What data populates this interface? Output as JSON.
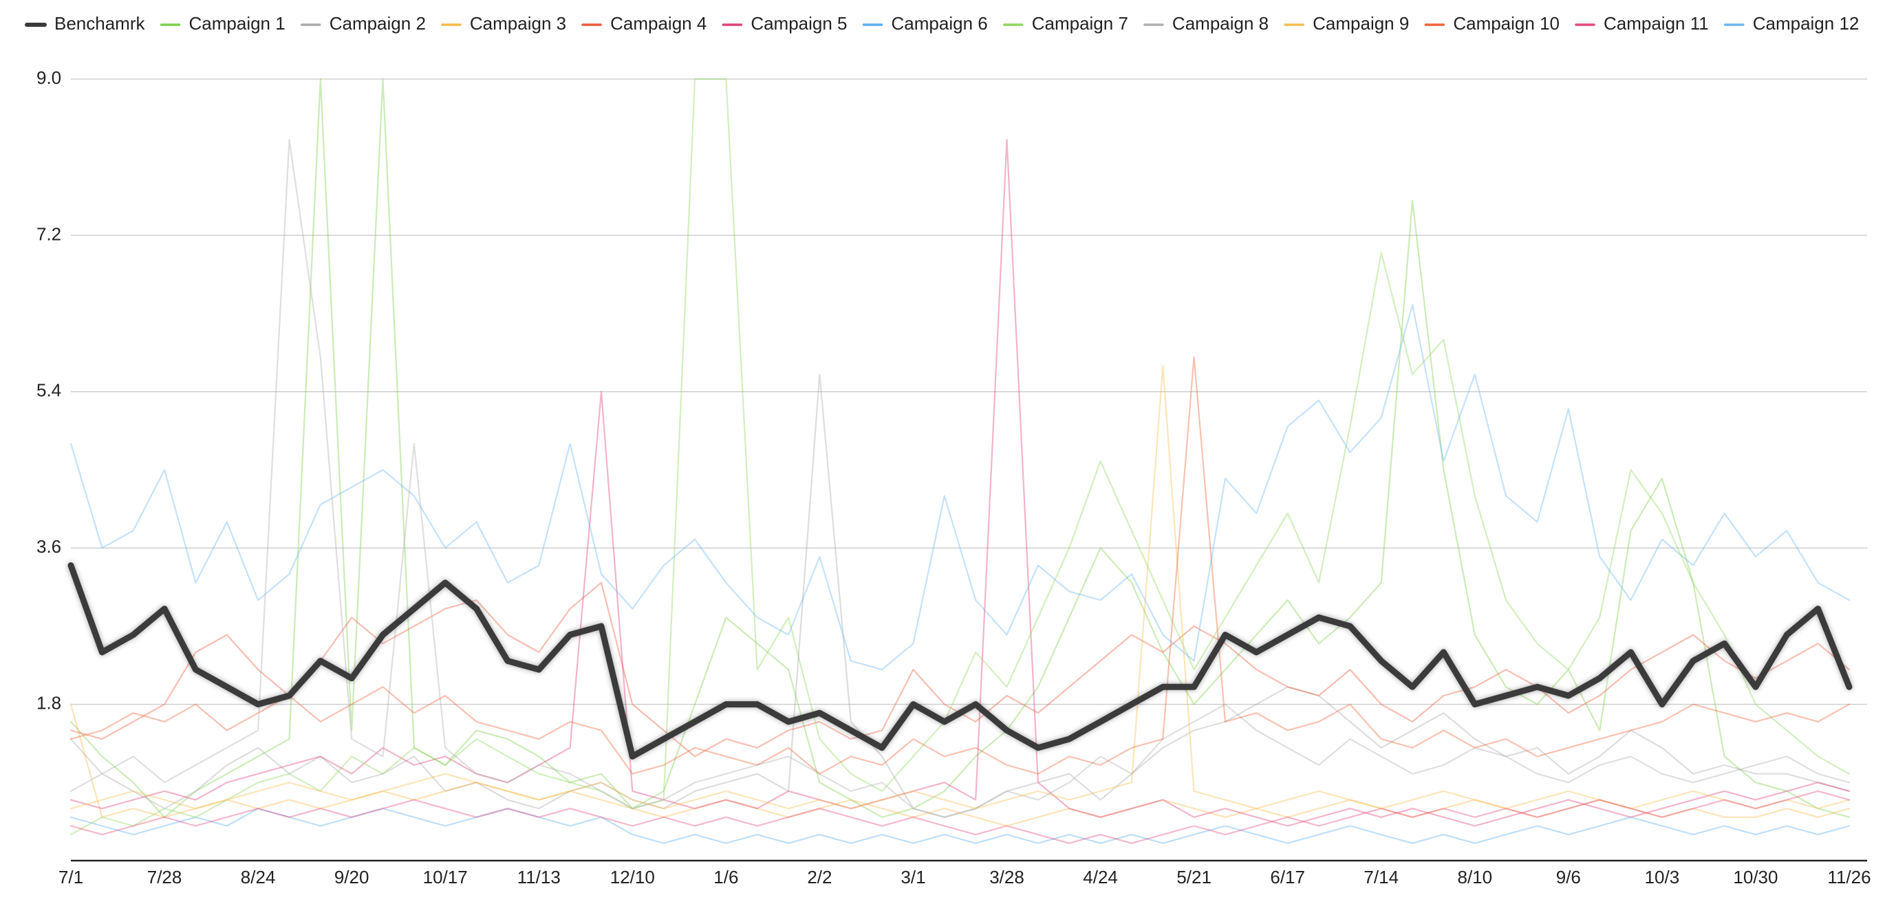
{
  "chart_data": {
    "type": "line",
    "legend": "top",
    "grid": true,
    "ylim": [
      0,
      9
    ],
    "yticks": [
      1.8,
      3.6,
      5.4,
      7.2,
      {
        "value": 9,
        "label": "9.0"
      }
    ],
    "categories": [
      "7/1",
      null,
      null,
      "7/28",
      null,
      null,
      "8/24",
      null,
      null,
      "9/20",
      null,
      null,
      "10/17",
      null,
      null,
      "11/13",
      null,
      null,
      "12/10",
      null,
      null,
      "1/6",
      null,
      null,
      "2/2",
      null,
      null,
      "3/1",
      null,
      null,
      "3/28",
      null,
      null,
      "4/24",
      null,
      null,
      "5/21",
      null,
      null,
      "6/17",
      null,
      null,
      "7/14",
      null,
      null,
      "8/10",
      null,
      null,
      "9/6",
      null,
      null,
      "10/3",
      null,
      null,
      "10/30",
      null,
      null,
      "11/26"
    ],
    "series": [
      {
        "name": "Benchamrk",
        "color": "#3a3a3a",
        "values": [
          3.4,
          2.4,
          2.6,
          2.9,
          2.2,
          2.0,
          1.8,
          1.9,
          2.3,
          2.1,
          2.6,
          2.9,
          3.2,
          2.9,
          2.3,
          2.2,
          2.6,
          2.7,
          1.2,
          1.4,
          1.6,
          1.8,
          1.8,
          1.6,
          1.7,
          1.5,
          1.3,
          1.8,
          1.6,
          1.8,
          1.5,
          1.3,
          1.4,
          1.6,
          1.8,
          2.0,
          2.0,
          2.6,
          2.4,
          2.6,
          2.8,
          2.7,
          2.3,
          2.0,
          2.4,
          1.8,
          1.9,
          2.0,
          1.9,
          2.1,
          2.4,
          1.8,
          2.3,
          2.5,
          2.0,
          2.6,
          2.9,
          2.0
        ]
      },
      {
        "name": "Campaign 1",
        "color": "#7ed04b",
        "values": [
          1.6,
          1.2,
          0.9,
          0.5,
          0.8,
          1.0,
          1.2,
          1.4,
          9.0,
          1.5,
          9.0,
          1.3,
          1.1,
          1.5,
          1.4,
          1.2,
          0.9,
          1.0,
          0.6,
          0.8,
          1.8,
          2.8,
          2.5,
          2.2,
          0.9,
          0.7,
          0.5,
          0.6,
          0.8,
          1.2,
          1.5,
          2.0,
          2.8,
          3.6,
          3.2,
          2.4,
          1.8,
          2.2,
          2.6,
          3.0,
          2.5,
          2.8,
          3.2,
          7.6,
          4.5,
          2.6,
          2.0,
          1.8,
          2.2,
          1.5,
          3.8,
          4.4,
          3.2,
          1.2,
          0.9,
          0.8,
          0.6,
          0.5
        ]
      },
      {
        "name": "Campaign 2",
        "color": "#a9a9a9",
        "values": [
          1.4,
          1.0,
          0.8,
          0.6,
          0.8,
          1.1,
          1.3,
          1.0,
          1.2,
          0.9,
          1.0,
          1.2,
          0.8,
          0.9,
          0.7,
          0.6,
          0.8,
          0.9,
          0.7,
          0.6,
          0.8,
          0.9,
          1.0,
          0.8,
          5.6,
          1.6,
          1.2,
          0.6,
          0.5,
          0.6,
          0.8,
          0.9,
          1.0,
          0.7,
          1.0,
          1.3,
          1.5,
          1.6,
          1.8,
          2.0,
          1.9,
          1.6,
          1.3,
          1.5,
          1.7,
          1.4,
          1.2,
          1.3,
          1.0,
          1.2,
          1.5,
          1.3,
          1.0,
          1.1,
          1.0,
          1.0,
          0.9,
          0.8
        ]
      },
      {
        "name": "Campaign 3",
        "color": "#f7b94a",
        "values": [
          1.8,
          0.5,
          0.6,
          0.5,
          0.6,
          0.7,
          0.6,
          0.7,
          0.6,
          0.7,
          0.8,
          0.7,
          0.8,
          0.9,
          0.8,
          0.7,
          0.8,
          0.7,
          0.6,
          0.5,
          0.6,
          0.7,
          0.6,
          0.5,
          0.6,
          0.7,
          0.6,
          0.5,
          0.6,
          0.5,
          0.4,
          0.5,
          0.6,
          0.5,
          0.6,
          0.7,
          0.6,
          0.5,
          0.6,
          0.5,
          0.6,
          0.7,
          0.6,
          0.5,
          0.6,
          0.7,
          0.6,
          0.5,
          0.6,
          0.7,
          0.6,
          0.5,
          0.6,
          0.5,
          0.5,
          0.6,
          0.5,
          0.6
        ]
      },
      {
        "name": "Campaign 4",
        "color": "#ee5a3c",
        "values": [
          1.5,
          1.4,
          1.6,
          1.8,
          2.4,
          2.6,
          2.2,
          1.9,
          2.3,
          2.8,
          2.5,
          2.7,
          2.9,
          3.0,
          2.6,
          2.4,
          2.9,
          3.2,
          1.8,
          1.5,
          1.2,
          1.4,
          1.3,
          1.5,
          1.6,
          1.4,
          1.5,
          2.2,
          1.8,
          1.6,
          1.9,
          1.7,
          2.0,
          2.3,
          2.6,
          2.4,
          2.7,
          2.5,
          2.2,
          2.0,
          1.9,
          2.2,
          1.8,
          1.6,
          1.9,
          2.0,
          2.2,
          2.0,
          1.7,
          1.9,
          2.2,
          2.4,
          2.6,
          2.3,
          2.1,
          2.3,
          2.5,
          2.2
        ]
      },
      {
        "name": "Campaign 5",
        "color": "#e0407a",
        "values": [
          0.7,
          0.6,
          0.7,
          0.8,
          0.7,
          0.9,
          1.0,
          1.1,
          1.2,
          1.0,
          1.3,
          1.1,
          1.2,
          1.0,
          0.9,
          1.1,
          1.3,
          5.4,
          0.8,
          0.7,
          0.6,
          0.7,
          0.6,
          0.8,
          0.7,
          0.6,
          0.7,
          0.8,
          0.9,
          0.7,
          8.3,
          0.9,
          0.6,
          0.5,
          0.6,
          0.7,
          0.5,
          0.6,
          0.5,
          0.4,
          0.5,
          0.6,
          0.5,
          0.6,
          0.5,
          0.4,
          0.5,
          0.6,
          0.7,
          0.6,
          0.5,
          0.6,
          0.7,
          0.8,
          0.7,
          0.8,
          0.9,
          0.8
        ]
      },
      {
        "name": "Campaign 6",
        "color": "#5aaef0",
        "values": [
          0.5,
          0.4,
          0.3,
          0.4,
          0.5,
          0.4,
          0.6,
          0.5,
          0.4,
          0.5,
          0.6,
          0.5,
          0.4,
          0.5,
          0.6,
          0.5,
          0.4,
          0.5,
          0.3,
          0.2,
          0.3,
          0.2,
          0.3,
          0.2,
          0.3,
          0.2,
          0.3,
          0.2,
          0.3,
          0.2,
          0.3,
          0.2,
          0.3,
          0.2,
          0.3,
          0.2,
          0.3,
          0.4,
          0.3,
          0.2,
          0.3,
          0.4,
          0.3,
          0.2,
          0.3,
          0.2,
          0.3,
          0.4,
          0.3,
          0.4,
          0.5,
          0.4,
          0.3,
          0.4,
          0.3,
          0.4,
          0.3,
          0.4
        ]
      },
      {
        "name": "Campaign 7",
        "color": "#8fd65c",
        "values": [
          0.3,
          0.5,
          0.4,
          0.6,
          0.5,
          0.7,
          0.9,
          1.0,
          0.8,
          1.2,
          1.0,
          1.3,
          1.1,
          1.4,
          1.2,
          1.0,
          0.9,
          0.8,
          0.6,
          0.7,
          9.0,
          9.0,
          2.2,
          2.8,
          1.4,
          1.0,
          0.8,
          1.2,
          1.6,
          2.4,
          2.0,
          2.8,
          3.6,
          4.6,
          3.8,
          3.0,
          2.2,
          2.8,
          3.4,
          4.0,
          3.2,
          5.0,
          7.0,
          5.6,
          6.0,
          4.2,
          3.0,
          2.5,
          2.2,
          2.8,
          4.5,
          4.0,
          3.2,
          2.6,
          1.8,
          1.5,
          1.2,
          1.0
        ]
      },
      {
        "name": "Campaign 8",
        "color": "#b0b0b0",
        "values": [
          0.8,
          1.0,
          1.2,
          0.9,
          1.1,
          1.3,
          1.5,
          8.3,
          5.8,
          1.4,
          1.2,
          4.8,
          1.3,
          1.0,
          0.9,
          1.1,
          1.0,
          0.8,
          0.6,
          0.7,
          0.9,
          1.0,
          1.1,
          1.2,
          1.0,
          0.8,
          0.9,
          0.6,
          0.5,
          0.6,
          0.8,
          0.7,
          0.9,
          1.2,
          1.0,
          1.4,
          1.6,
          1.8,
          1.5,
          1.3,
          1.1,
          1.4,
          1.2,
          1.0,
          1.1,
          1.3,
          1.2,
          1.0,
          0.9,
          1.1,
          1.2,
          1.0,
          0.9,
          1.0,
          1.1,
          1.2,
          1.0,
          0.9
        ]
      },
      {
        "name": "Campaign 9",
        "color": "#f6be4f",
        "values": [
          0.6,
          0.7,
          0.8,
          0.7,
          0.6,
          0.7,
          0.8,
          0.9,
          0.8,
          0.7,
          0.8,
          0.9,
          1.0,
          0.9,
          0.8,
          0.7,
          0.8,
          0.9,
          0.7,
          0.6,
          0.7,
          0.8,
          0.7,
          0.6,
          0.7,
          0.6,
          0.7,
          0.8,
          0.7,
          0.6,
          0.7,
          0.8,
          0.7,
          0.8,
          0.9,
          5.7,
          0.8,
          0.7,
          0.6,
          0.7,
          0.8,
          0.7,
          0.6,
          0.7,
          0.8,
          0.7,
          0.6,
          0.7,
          0.8,
          0.7,
          0.6,
          0.7,
          0.8,
          0.7,
          0.6,
          0.7,
          0.6,
          0.7
        ]
      },
      {
        "name": "Campaign 10",
        "color": "#f0643a",
        "values": [
          1.4,
          1.5,
          1.7,
          1.6,
          1.8,
          1.5,
          1.7,
          1.9,
          1.6,
          1.8,
          2.0,
          1.7,
          1.9,
          1.6,
          1.5,
          1.4,
          1.6,
          1.5,
          1.0,
          1.1,
          1.3,
          1.2,
          1.1,
          1.3,
          1.0,
          1.2,
          1.1,
          1.4,
          1.2,
          1.3,
          1.1,
          1.0,
          1.2,
          1.1,
          1.3,
          1.4,
          5.8,
          1.6,
          1.7,
          1.5,
          1.6,
          1.8,
          1.4,
          1.3,
          1.5,
          1.3,
          1.4,
          1.2,
          1.3,
          1.4,
          1.5,
          1.6,
          1.8,
          1.7,
          1.6,
          1.7,
          1.6,
          1.8
        ]
      },
      {
        "name": "Campaign 11",
        "color": "#e54b7e",
        "values": [
          0.4,
          0.3,
          0.4,
          0.5,
          0.4,
          0.5,
          0.6,
          0.5,
          0.6,
          0.5,
          0.6,
          0.7,
          0.6,
          0.5,
          0.6,
          0.5,
          0.6,
          0.5,
          0.4,
          0.5,
          0.4,
          0.5,
          0.4,
          0.5,
          0.6,
          0.5,
          0.4,
          0.5,
          0.4,
          0.3,
          0.4,
          0.3,
          0.2,
          0.3,
          0.2,
          0.3,
          0.4,
          0.3,
          0.4,
          0.5,
          0.4,
          0.5,
          0.6,
          0.5,
          0.6,
          0.5,
          0.6,
          0.5,
          0.6,
          0.7,
          0.6,
          0.5,
          0.6,
          0.7,
          0.6,
          0.7,
          0.8,
          0.7
        ]
      },
      {
        "name": "Campaign 12",
        "color": "#6cb6f2",
        "values": [
          4.8,
          3.6,
          3.8,
          4.5,
          3.2,
          3.9,
          3.0,
          3.3,
          4.1,
          4.3,
          4.5,
          4.2,
          3.6,
          3.9,
          3.2,
          3.4,
          4.8,
          3.3,
          2.9,
          3.4,
          3.7,
          3.2,
          2.8,
          2.6,
          3.5,
          2.3,
          2.2,
          2.5,
          4.2,
          3.0,
          2.6,
          3.4,
          3.1,
          3.0,
          3.3,
          2.6,
          2.3,
          4.4,
          4.0,
          5.0,
          5.3,
          4.7,
          5.1,
          6.4,
          4.6,
          5.6,
          4.2,
          3.9,
          5.2,
          3.5,
          3.0,
          3.7,
          3.4,
          4.0,
          3.5,
          3.8,
          3.2,
          3.0
        ]
      }
    ]
  }
}
